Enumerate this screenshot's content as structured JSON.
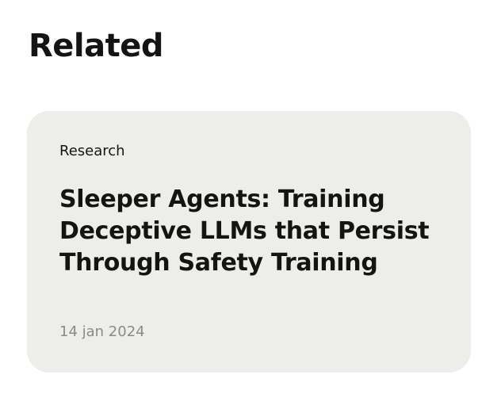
{
  "section": {
    "title": "Related"
  },
  "card": {
    "category": "Research",
    "title": "Sleeper Agents: Training Deceptive LLMs that Persist Through Safety Training",
    "date": "14 jan 2024"
  },
  "colors": {
    "card_background": "#ededea",
    "text_primary": "#141413",
    "text_muted": "#8a8a86"
  }
}
